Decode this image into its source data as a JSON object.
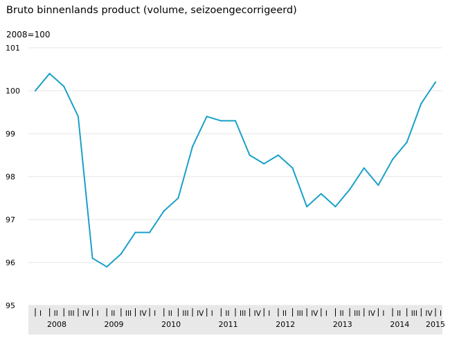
{
  "chart_data": {
    "type": "line",
    "title": "Bruto binnenlands product (volume, seizoengecorrigeerd)",
    "unit": "2008=100",
    "ylim": [
      95,
      101
    ],
    "yticks": [
      95,
      96,
      97,
      98,
      99,
      100,
      101
    ],
    "grid": true,
    "color": "#1aa0c8",
    "quarters": [
      "I",
      "II",
      "III",
      "IV",
      "I",
      "II",
      "III",
      "IV",
      "I",
      "II",
      "III",
      "IV",
      "I",
      "II",
      "III",
      "IV",
      "I",
      "II",
      "III",
      "IV",
      "I",
      "II",
      "III",
      "IV",
      "I",
      "II",
      "III",
      "IV",
      "I"
    ],
    "years": [
      {
        "label": "2008",
        "start": 0,
        "end": 3
      },
      {
        "label": "2009",
        "start": 4,
        "end": 7
      },
      {
        "label": "2010",
        "start": 8,
        "end": 11
      },
      {
        "label": "2011",
        "start": 12,
        "end": 15
      },
      {
        "label": "2012",
        "start": 16,
        "end": 19
      },
      {
        "label": "2013",
        "start": 20,
        "end": 23
      },
      {
        "label": "2014",
        "start": 24,
        "end": 27
      },
      {
        "label": "2015",
        "start": 28,
        "end": 28
      }
    ],
    "series": [
      {
        "values": [
          100.0,
          100.4,
          100.1,
          99.4,
          96.1,
          95.9,
          96.2,
          96.7,
          96.7,
          97.2,
          97.5,
          98.7,
          99.4,
          99.3,
          99.3,
          98.5,
          98.3,
          98.5,
          98.2,
          97.3,
          97.6,
          97.3,
          97.7,
          98.2,
          97.8,
          98.4,
          98.8,
          99.7,
          100.2
        ]
      }
    ]
  }
}
